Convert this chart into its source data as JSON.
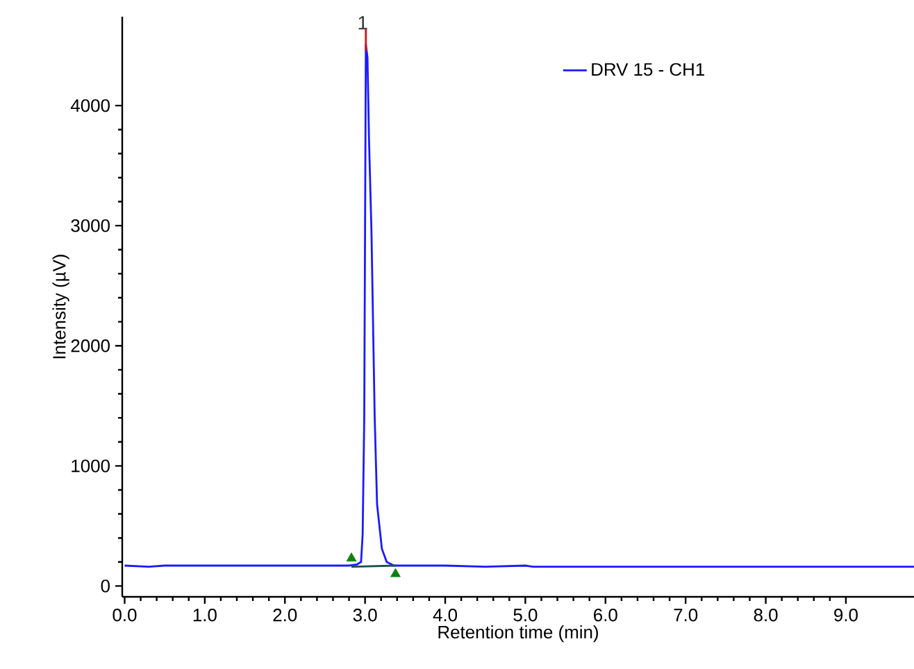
{
  "chart_data": {
    "type": "line",
    "xlabel": "Retention time (min)",
    "ylabel": "Intensity (µV)",
    "xlim": [
      -0.03,
      9.85
    ],
    "ylim": [
      -90,
      4740
    ],
    "xticks": [
      {
        "value": 0,
        "label": "0.0"
      },
      {
        "value": 1,
        "label": "1.0"
      },
      {
        "value": 2,
        "label": "2.0"
      },
      {
        "value": 3,
        "label": "3.0"
      },
      {
        "value": 4,
        "label": "4.0"
      },
      {
        "value": 5,
        "label": "5.0"
      },
      {
        "value": 6,
        "label": "6.0"
      },
      {
        "value": 7,
        "label": "7.0"
      },
      {
        "value": 8,
        "label": "8.0"
      },
      {
        "value": 9,
        "label": "9.0"
      }
    ],
    "yticks": [
      0,
      1000,
      2000,
      3000,
      4000
    ],
    "grid": false,
    "legend": "top right",
    "series": [
      {
        "name": "DRV 15 - CH1",
        "color": "#1a1aff",
        "x": [
          0,
          0.3,
          0.5,
          0.8,
          1.0,
          1.2,
          1.8,
          2.0,
          2.3,
          2.6,
          2.8,
          2.9,
          2.95,
          2.97,
          2.99,
          3.01,
          3.03,
          3.05,
          3.08,
          3.12,
          3.15,
          3.21,
          3.27,
          3.36,
          3.6,
          4.0,
          4.5,
          5.0,
          5.1,
          9.85
        ],
        "values": [
          170,
          160,
          170,
          170,
          170,
          170,
          170,
          170,
          170,
          170,
          170,
          180,
          200,
          430,
          1410,
          4510,
          4400,
          3700,
          2950,
          1410,
          680,
          310,
          200,
          170,
          170,
          170,
          160,
          170,
          160,
          160
        ]
      },
      {
        "color": "#1f4f4f",
        "type": "line",
        "x": [
          2.83,
          3.38
        ],
        "values": [
          160,
          170
        ]
      },
      {
        "color": "#e01010",
        "type": "line",
        "x": [
          3.01,
          3.01
        ],
        "values": [
          4450,
          4640
        ]
      },
      {
        "color": "#108010",
        "type": "scatter",
        "marker": "triangle",
        "x": [
          2.83,
          3.38
        ],
        "values": [
          230,
          100
        ]
      }
    ],
    "annotations": [
      {
        "text": "1",
        "x": 2.97,
        "y": 4620
      }
    ]
  }
}
